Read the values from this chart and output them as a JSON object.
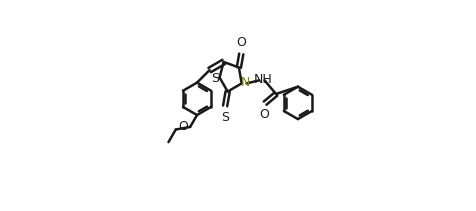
{
  "bg_color": "#ffffff",
  "line_color": "#1a1a1a",
  "bond_width": 1.8,
  "N_color": "#8B8000",
  "fig_width": 4.76,
  "fig_height": 2.11,
  "xlim": [
    -0.05,
    1.05
  ],
  "ylim": [
    -0.05,
    1.05
  ]
}
